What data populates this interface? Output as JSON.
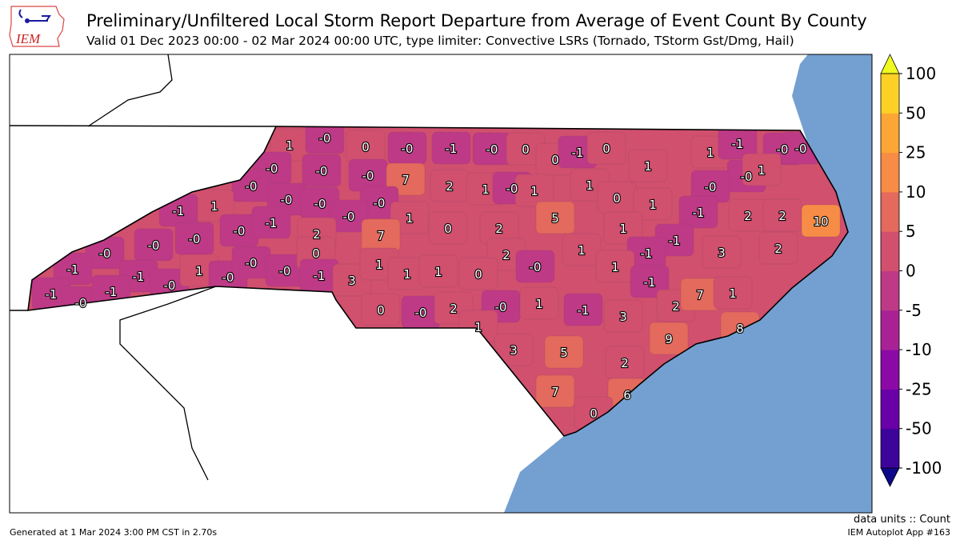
{
  "header": {
    "title": "Preliminary/Unfiltered Local Storm Report Departure from Average of Event Count By County",
    "subtitle": "Valid 01 Dec 2023 00:00 - 02 Mar 2024 00:00 UTC, type limiter: Convective LSRs (Tornado, TStorm Gst/Dmg, Hail)",
    "logo_text": "IEM"
  },
  "colorbar": {
    "ticks": [
      "-100",
      "-50",
      "-25",
      "-10",
      "-5",
      "0",
      "5",
      "10",
      "25",
      "50",
      "100"
    ],
    "colors": [
      "#3d049b",
      "#6a00a8",
      "#8b0aa5",
      "#a82296",
      "#be3a86",
      "#d0506e",
      "#e36a5c",
      "#f68c45",
      "#fca636",
      "#fdd025"
    ],
    "under_color": "#0d0887",
    "over_color": "#f0f921"
  },
  "map": {
    "ocean_color": "#74a0d1",
    "land_color": "#ffffff",
    "county_values": [
      "1",
      "-0",
      "0",
      "-0",
      "-1",
      "-0",
      "0",
      "0",
      "-1",
      "0",
      "1",
      "1",
      "-1",
      "-0",
      "-0",
      "-0",
      "1",
      "-0",
      "-0",
      "-0",
      "7",
      "2",
      "1",
      "-0",
      "1",
      "1",
      "0",
      "1",
      "-0",
      "-1",
      "2",
      "2",
      "10",
      "-0",
      "1",
      "-1",
      "-0",
      "-0",
      "-0",
      "-0",
      "1",
      "0",
      "2",
      "5",
      "1",
      "-1",
      "-0",
      "-0",
      "-0",
      "-1",
      "2",
      "7",
      "2",
      "1",
      "-1",
      "3",
      "2",
      "-0",
      "-1",
      "-1",
      "-0",
      "1",
      "-0",
      "-0",
      "-0",
      "0",
      "-1",
      "3",
      "1",
      "1",
      "1",
      "0",
      "-0",
      "1",
      "-1",
      "-1",
      "-0",
      "-1",
      "0",
      "-0",
      "2",
      "-0",
      "1",
      "-1",
      "3",
      "2",
      "7",
      "1",
      "8",
      "1",
      "3",
      "5",
      "9",
      "2",
      "7",
      "6",
      "0"
    ]
  },
  "footer": {
    "generated": "Generated at 1 Mar 2024 3:00 PM CST in 2.70s",
    "units": "data units :: Count",
    "app": "IEM Autoplot App #163"
  }
}
